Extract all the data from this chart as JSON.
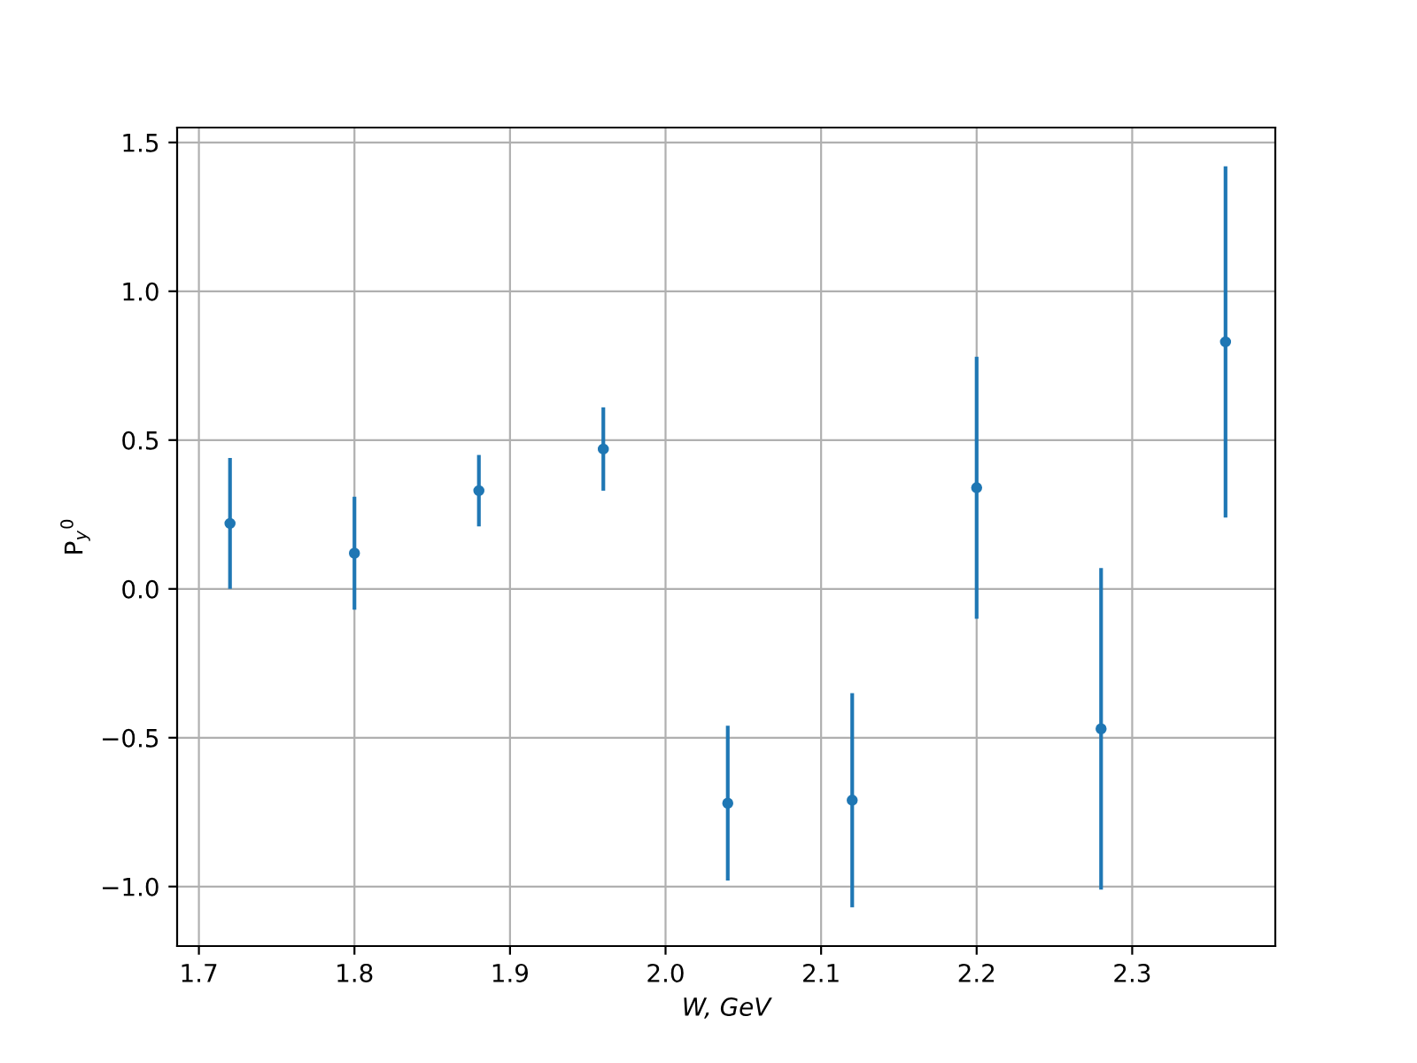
{
  "chart_data": {
    "type": "scatter",
    "xlabel": "W, GeV",
    "ylabel": "P$_{y}$$^{0}$",
    "x": [
      1.72,
      1.8,
      1.88,
      1.96,
      2.04,
      2.12,
      2.2,
      2.28,
      2.36
    ],
    "series": [
      {
        "color": "#1f77b4",
        "values": [
          0.22,
          0.12,
          0.33,
          0.47,
          -0.72,
          -0.71,
          0.34,
          -0.47,
          0.83
        ],
        "errors": [
          0.22,
          0.19,
          0.12,
          0.14,
          0.26,
          0.36,
          0.44,
          0.54,
          0.59
        ]
      }
    ],
    "xlim": [
      1.686,
      2.392
    ],
    "ylim": [
      -1.2,
      1.55
    ],
    "xticks": [
      1.7,
      1.8,
      1.9,
      {
        "value": 2,
        "label": "2.0"
      },
      2.1,
      2.2,
      2.3
    ],
    "yticks": [
      {
        "value": -1,
        "label": "−1.0"
      },
      {
        "value": -0.5,
        "label": "−0.5"
      },
      {
        "value": 0,
        "label": "0.0"
      },
      0.5,
      {
        "value": 1,
        "label": "1.0"
      },
      1.5
    ],
    "grid": true,
    "marker": "circle"
  }
}
